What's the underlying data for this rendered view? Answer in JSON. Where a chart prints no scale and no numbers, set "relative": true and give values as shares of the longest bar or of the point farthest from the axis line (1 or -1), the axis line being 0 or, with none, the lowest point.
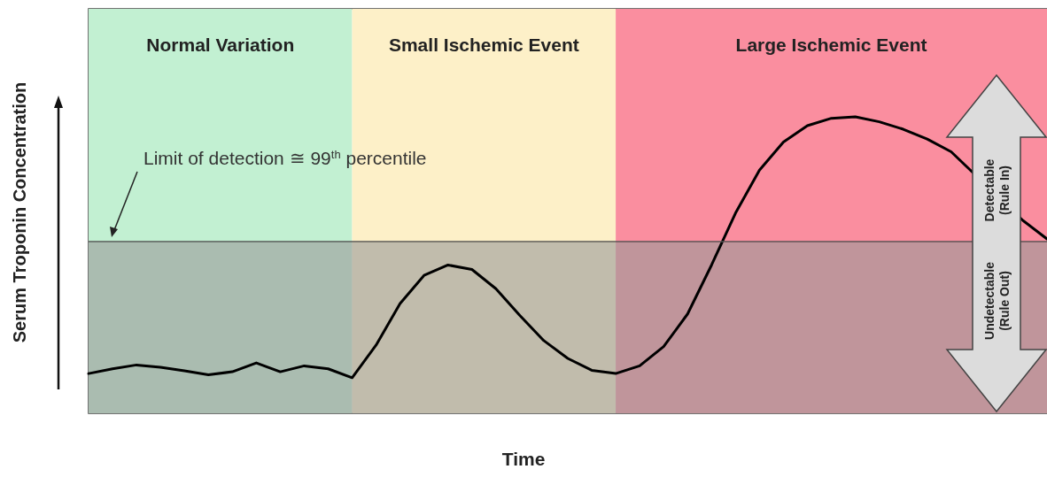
{
  "chart_data": {
    "type": "line",
    "relative": true,
    "xlabel": "Time",
    "ylabel": "Serum Troponin Concentration",
    "tick_labels": false,
    "categories": [
      null,
      null,
      null,
      null,
      null,
      null,
      null,
      null,
      null,
      null,
      null,
      null,
      null,
      null,
      null,
      null,
      null,
      null,
      null,
      null,
      null,
      null,
      null,
      null,
      null,
      null,
      null,
      null,
      null,
      null,
      null,
      null,
      null,
      null,
      null,
      null,
      null,
      null,
      null,
      null,
      null
    ],
    "series": [
      {
        "color": "#000000",
        "values": [
          0.134,
          0.15,
          0.163,
          0.155,
          0.143,
          0.13,
          0.14,
          0.17,
          0.14,
          0.16,
          0.15,
          0.12,
          0.23,
          0.37,
          0.465,
          0.5,
          0.485,
          0.42,
          0.33,
          0.245,
          0.185,
          0.145,
          0.134,
          0.16,
          0.225,
          0.335,
          0.5,
          0.675,
          0.82,
          0.915,
          0.97,
          0.995,
          1,
          0.983,
          0.958,
          0.925,
          0.882,
          null,
          null,
          0.65,
          0.588
        ]
      }
    ],
    "bands": [
      {
        "axis": "y",
        "from": 0,
        "to": 0.576,
        "color": "#9a9a9a"
      }
    ],
    "ref_lines": [
      {
        "axis": "y",
        "value": 0.576,
        "label": "Limit of detection ≅ 99$^{th}$ percentile",
        "color": "#555555"
      }
    ],
    "annotations": [
      "Normal Variation",
      "Small Ischemic Event",
      "Large Ischemic Event",
      "Detectable\n(Rule In)",
      "Undetectable\n(Rule Out)"
    ]
  }
}
